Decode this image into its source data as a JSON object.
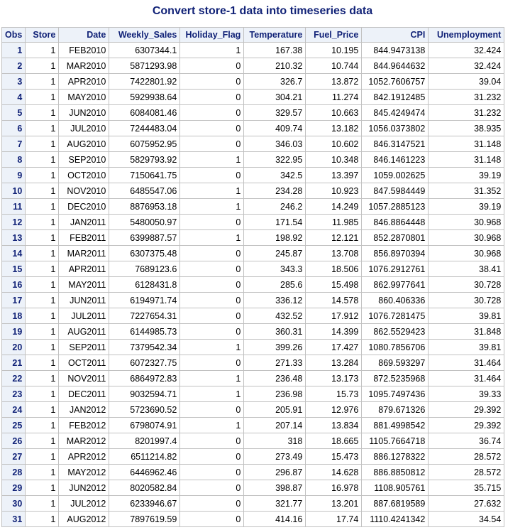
{
  "title": "Convert store-1 data into timeseries data",
  "columns": [
    "Obs",
    "Store",
    "Date",
    "Weekly_Sales",
    "Holiday_Flag",
    "Temperature",
    "Fuel_Price",
    "CPI",
    "Unemployment"
  ],
  "rows": [
    [
      "1",
      "1",
      "FEB2010",
      "6307344.1",
      "1",
      "167.38",
      "10.195",
      "844.9473138",
      "32.424"
    ],
    [
      "2",
      "1",
      "MAR2010",
      "5871293.98",
      "0",
      "210.32",
      "10.744",
      "844.9644632",
      "32.424"
    ],
    [
      "3",
      "1",
      "APR2010",
      "7422801.92",
      "0",
      "326.7",
      "13.872",
      "1052.7606757",
      "39.04"
    ],
    [
      "4",
      "1",
      "MAY2010",
      "5929938.64",
      "0",
      "304.21",
      "11.274",
      "842.1912485",
      "31.232"
    ],
    [
      "5",
      "1",
      "JUN2010",
      "6084081.46",
      "0",
      "329.57",
      "10.663",
      "845.4249474",
      "31.232"
    ],
    [
      "6",
      "1",
      "JUL2010",
      "7244483.04",
      "0",
      "409.74",
      "13.182",
      "1056.0373802",
      "38.935"
    ],
    [
      "7",
      "1",
      "AUG2010",
      "6075952.95",
      "0",
      "346.03",
      "10.602",
      "846.3147521",
      "31.148"
    ],
    [
      "8",
      "1",
      "SEP2010",
      "5829793.92",
      "1",
      "322.95",
      "10.348",
      "846.1461223",
      "31.148"
    ],
    [
      "9",
      "1",
      "OCT2010",
      "7150641.75",
      "0",
      "342.5",
      "13.397",
      "1059.002625",
      "39.19"
    ],
    [
      "10",
      "1",
      "NOV2010",
      "6485547.06",
      "1",
      "234.28",
      "10.923",
      "847.5984449",
      "31.352"
    ],
    [
      "11",
      "1",
      "DEC2010",
      "8876953.18",
      "1",
      "246.2",
      "14.249",
      "1057.2885123",
      "39.19"
    ],
    [
      "12",
      "1",
      "JAN2011",
      "5480050.97",
      "0",
      "171.54",
      "11.985",
      "846.8864448",
      "30.968"
    ],
    [
      "13",
      "1",
      "FEB2011",
      "6399887.57",
      "1",
      "198.92",
      "12.121",
      "852.2870801",
      "30.968"
    ],
    [
      "14",
      "1",
      "MAR2011",
      "6307375.48",
      "0",
      "245.87",
      "13.708",
      "856.8970394",
      "30.968"
    ],
    [
      "15",
      "1",
      "APR2011",
      "7689123.6",
      "0",
      "343.3",
      "18.506",
      "1076.2912761",
      "38.41"
    ],
    [
      "16",
      "1",
      "MAY2011",
      "6128431.8",
      "0",
      "285.6",
      "15.498",
      "862.9977641",
      "30.728"
    ],
    [
      "17",
      "1",
      "JUN2011",
      "6194971.74",
      "0",
      "336.12",
      "14.578",
      "860.406336",
      "30.728"
    ],
    [
      "18",
      "1",
      "JUL2011",
      "7227654.31",
      "0",
      "432.52",
      "17.912",
      "1076.7281475",
      "39.81"
    ],
    [
      "19",
      "1",
      "AUG2011",
      "6144985.73",
      "0",
      "360.31",
      "14.399",
      "862.5529423",
      "31.848"
    ],
    [
      "20",
      "1",
      "SEP2011",
      "7379542.34",
      "1",
      "399.26",
      "17.427",
      "1080.7856706",
      "39.81"
    ],
    [
      "21",
      "1",
      "OCT2011",
      "6072327.75",
      "0",
      "271.33",
      "13.284",
      "869.593297",
      "31.464"
    ],
    [
      "22",
      "1",
      "NOV2011",
      "6864972.83",
      "1",
      "236.48",
      "13.173",
      "872.5235968",
      "31.464"
    ],
    [
      "23",
      "1",
      "DEC2011",
      "9032594.71",
      "1",
      "236.98",
      "15.73",
      "1095.7497436",
      "39.33"
    ],
    [
      "24",
      "1",
      "JAN2012",
      "5723690.52",
      "0",
      "205.91",
      "12.976",
      "879.671326",
      "29.392"
    ],
    [
      "25",
      "1",
      "FEB2012",
      "6798074.91",
      "1",
      "207.14",
      "13.834",
      "881.4998542",
      "29.392"
    ],
    [
      "26",
      "1",
      "MAR2012",
      "8201997.4",
      "0",
      "318",
      "18.665",
      "1105.7664718",
      "36.74"
    ],
    [
      "27",
      "1",
      "APR2012",
      "6511214.82",
      "0",
      "273.49",
      "15.473",
      "886.1278322",
      "28.572"
    ],
    [
      "28",
      "1",
      "MAY2012",
      "6446962.46",
      "0",
      "296.87",
      "14.628",
      "886.8850812",
      "28.572"
    ],
    [
      "29",
      "1",
      "JUN2012",
      "8020582.84",
      "0",
      "398.87",
      "16.978",
      "1108.905761",
      "35.715"
    ],
    [
      "30",
      "1",
      "JUL2012",
      "6233946.67",
      "0",
      "321.77",
      "13.201",
      "887.6819589",
      "27.632"
    ],
    [
      "31",
      "1",
      "AUG2012",
      "7897619.59",
      "0",
      "414.16",
      "17.74",
      "1110.4241342",
      "34.54"
    ]
  ]
}
